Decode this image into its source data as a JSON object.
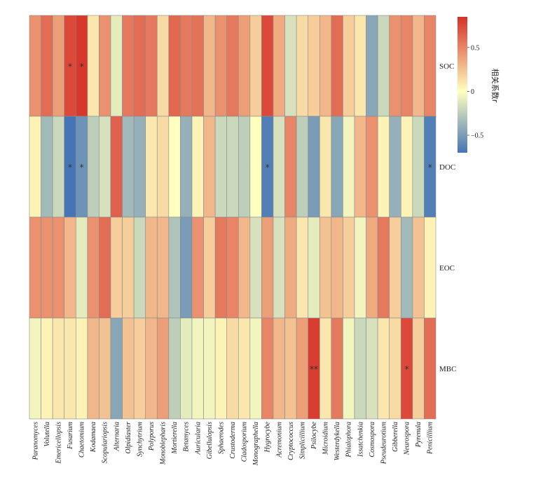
{
  "chart_data": {
    "type": "heatmap",
    "rows": [
      "SOC",
      "DOC",
      "EOC",
      "MBC"
    ],
    "columns": [
      "Paranomyces",
      "Volutella",
      "Emericellopsis",
      "Fusarium",
      "Chaetomium",
      "Kodamaea",
      "Scopulariopsis",
      "Alternaria",
      "Olpidiaster",
      "Synchytrium",
      "Polyporus",
      "Monoblepharis",
      "Mortierella",
      "Betamyces",
      "Auricularia",
      "Gibellulopsis",
      "Sphaerodes",
      "Crustoderma",
      "Cladosporium",
      "Monographella",
      "Hygrocybe",
      "Acremonium",
      "Cryptococcus",
      "Simplicillium",
      "Psilocybe",
      "Microidium",
      "Westerdykella",
      "Phialophora",
      "Issatchenkia",
      "Cosmospora",
      "Pseudeurotium",
      "Gibberella",
      "Neurospora",
      "Pyrenula",
      "Penicillium"
    ],
    "values": [
      [
        0.45,
        0.6,
        0.4,
        0.75,
        0.82,
        0.1,
        0.45,
        -0.1,
        0.55,
        0.6,
        0.55,
        0.15,
        0.62,
        0.55,
        0.58,
        0.3,
        0.45,
        0.55,
        0.4,
        0.2,
        0.75,
        0.35,
        -0.15,
        0.15,
        0.2,
        0.3,
        0.6,
        0.2,
        0.1,
        -0.45,
        -0.2,
        0.45,
        0.5,
        0.3,
        0.5
      ],
      [
        0.05,
        -0.35,
        -0.2,
        -0.7,
        -0.55,
        -0.25,
        -0.15,
        0.65,
        -0.35,
        -0.4,
        0.1,
        0.15,
        0.0,
        -0.4,
        0.05,
        0.3,
        -0.2,
        -0.2,
        -0.25,
        0.0,
        -0.65,
        -0.15,
        0.5,
        -0.25,
        -0.5,
        0.1,
        -0.45,
        -0.05,
        0.3,
        0.45,
        0.05,
        -0.4,
        0.05,
        -0.2,
        -0.65
      ],
      [
        0.45,
        0.45,
        0.45,
        0.3,
        -0.1,
        0.45,
        0.6,
        0.2,
        0.2,
        -0.2,
        0.3,
        0.3,
        -0.3,
        -0.5,
        0.45,
        0.2,
        0.55,
        0.5,
        0.3,
        -0.15,
        0.4,
        -0.15,
        0.35,
        0.1,
        -0.1,
        0.25,
        0.3,
        0.2,
        -0.05,
        0.35,
        0.55,
        0.2,
        -0.35,
        0.25,
        0.05
      ],
      [
        -0.05,
        0.05,
        0.1,
        0.1,
        0.05,
        0.3,
        0.25,
        -0.45,
        0.25,
        0.2,
        0.3,
        0.4,
        -0.25,
        -0.1,
        -0.05,
        -0.05,
        0.05,
        0.15,
        0.1,
        -0.05,
        0.5,
        0.3,
        0.25,
        0.4,
        0.8,
        0.1,
        0.55,
        -0.05,
        -0.2,
        -0.15,
        0.1,
        0.15,
        0.75,
        0.2,
        0.6
      ]
    ],
    "significance": [
      {
        "row": "SOC",
        "column": "Fusarium",
        "mark": "*"
      },
      {
        "row": "SOC",
        "column": "Chaetomium",
        "mark": "*"
      },
      {
        "row": "DOC",
        "column": "Fusarium",
        "mark": "*"
      },
      {
        "row": "DOC",
        "column": "Chaetomium",
        "mark": "*"
      },
      {
        "row": "DOC",
        "column": "Hygrocybe",
        "mark": "*"
      },
      {
        "row": "DOC",
        "column": "Penicillium",
        "mark": "*"
      },
      {
        "row": "MBC",
        "column": "Psilocybe",
        "mark": "**"
      },
      {
        "row": "MBC",
        "column": "Neurospora",
        "mark": "*"
      }
    ],
    "color_scale": {
      "min": -0.7,
      "mid": 0,
      "max": 0.85,
      "low_color": "#4575b4",
      "mid_color": "#ffffbf",
      "high_color": "#d73027",
      "ticks": [
        "0.5",
        "0",
        "−0.5"
      ],
      "tick_values": [
        0.5,
        0,
        -0.5
      ]
    },
    "legend_title": "相关系数r"
  }
}
